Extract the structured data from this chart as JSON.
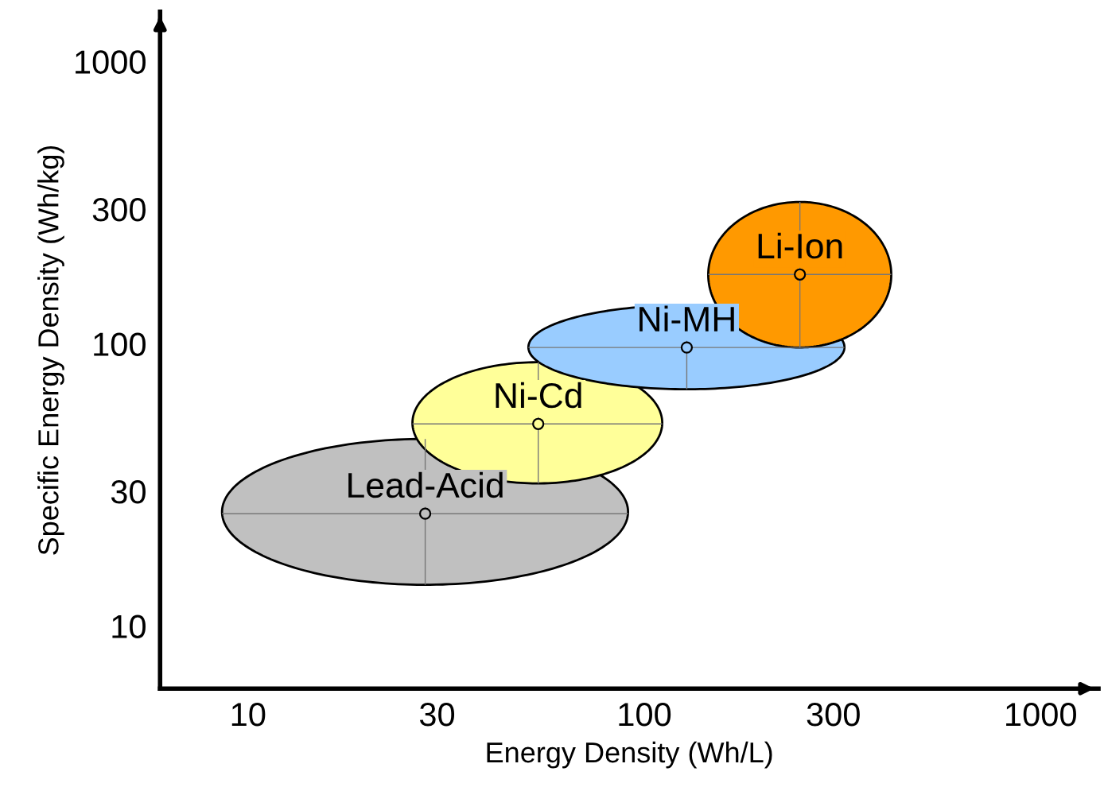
{
  "chart_data": {
    "type": "scatter",
    "xlabel": "Energy Density (Wh/L)",
    "ylabel": "Specific Energy Density (Wh/kg)",
    "log": "xy",
    "xlim": [
      6,
      1400
    ],
    "ylim": [
      6,
      1500
    ],
    "xticks": [
      10,
      30,
      100,
      300,
      1000
    ],
    "yticks": [
      10,
      30,
      100,
      300,
      1000
    ],
    "grid": false,
    "legend": false,
    "series": [
      {
        "name": "Lead-Acid",
        "color": "#c0c0c0",
        "x": [
          28
        ],
        "values": [
          25
        ],
        "xerrors": [
          [
            8.6,
            91
          ]
        ],
        "errors": [
          [
            14,
            46
          ]
        ]
      },
      {
        "name": "Ni-Cd",
        "color": "#ffff99",
        "x": [
          54
        ],
        "values": [
          52
        ],
        "xerrors": [
          [
            26,
            111
          ]
        ],
        "errors": [
          [
            32,
            86
          ]
        ]
      },
      {
        "name": "Ni-MH",
        "color": "#99ccff",
        "x": [
          128
        ],
        "values": [
          97
        ],
        "xerrors": [
          [
            51,
            320
          ]
        ],
        "errors": [
          [
            69,
            137
          ]
        ]
      },
      {
        "name": "Li-Ion",
        "color": "#ff9900",
        "x": [
          247
        ],
        "values": [
          176
        ],
        "xerrors": [
          [
            145,
            420
          ]
        ],
        "errors": [
          [
            97,
            318
          ]
        ]
      }
    ]
  }
}
